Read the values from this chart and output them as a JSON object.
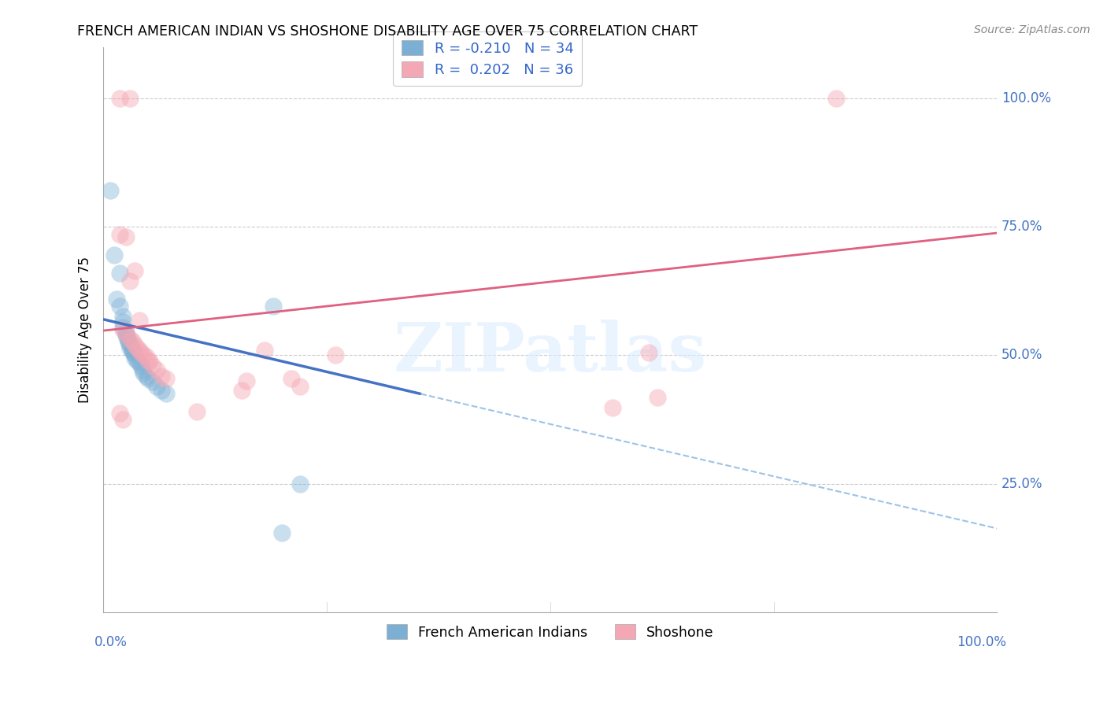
{
  "title": "FRENCH AMERICAN INDIAN VS SHOSHONE DISABILITY AGE OVER 75 CORRELATION CHART",
  "source": "Source: ZipAtlas.com",
  "ylabel": "Disability Age Over 75",
  "xlim": [
    0.0,
    1.0
  ],
  "ylim": [
    0.0,
    1.1
  ],
  "ytick_values": [
    0.25,
    0.5,
    0.75,
    1.0
  ],
  "ytick_labels": [
    "25.0%",
    "50.0%",
    "75.0%",
    "100.0%"
  ],
  "xtick_values": [
    0.0,
    0.25,
    0.5,
    0.75,
    1.0
  ],
  "xtick_labels": [
    "0.0%",
    "",
    "",
    "",
    "100.0%"
  ],
  "color_blue": "#7BAFD4",
  "color_pink": "#F4A7B4",
  "color_blue_line": "#4472C4",
  "color_blue_dashed": "#9DC3E6",
  "color_pink_line": "#E06080",
  "watermark_text": "ZIPatlas",
  "legend_label1": "French American Indians",
  "legend_label2": "Shoshone",
  "legend_r1": "R = -0.210",
  "legend_n1": "N = 34",
  "legend_r2": "R =  0.202",
  "legend_n2": "N = 36",
  "blue_points": [
    [
      0.008,
      0.82
    ],
    [
      0.012,
      0.695
    ],
    [
      0.018,
      0.66
    ],
    [
      0.015,
      0.61
    ],
    [
      0.018,
      0.595
    ],
    [
      0.022,
      0.575
    ],
    [
      0.022,
      0.565
    ],
    [
      0.022,
      0.555
    ],
    [
      0.025,
      0.545
    ],
    [
      0.025,
      0.54
    ],
    [
      0.026,
      0.535
    ],
    [
      0.028,
      0.53
    ],
    [
      0.028,
      0.525
    ],
    [
      0.03,
      0.52
    ],
    [
      0.03,
      0.515
    ],
    [
      0.032,
      0.512
    ],
    [
      0.032,
      0.508
    ],
    [
      0.033,
      0.505
    ],
    [
      0.035,
      0.5
    ],
    [
      0.035,
      0.495
    ],
    [
      0.038,
      0.49
    ],
    [
      0.04,
      0.485
    ],
    [
      0.042,
      0.48
    ],
    [
      0.044,
      0.472
    ],
    [
      0.045,
      0.465
    ],
    [
      0.048,
      0.46
    ],
    [
      0.05,
      0.455
    ],
    [
      0.055,
      0.448
    ],
    [
      0.06,
      0.44
    ],
    [
      0.065,
      0.432
    ],
    [
      0.07,
      0.425
    ],
    [
      0.19,
      0.595
    ],
    [
      0.2,
      0.155
    ],
    [
      0.22,
      0.25
    ]
  ],
  "pink_points": [
    [
      0.018,
      1.0
    ],
    [
      0.03,
      1.0
    ],
    [
      0.82,
      1.0
    ],
    [
      0.018,
      0.735
    ],
    [
      0.025,
      0.73
    ],
    [
      0.035,
      0.665
    ],
    [
      0.03,
      0.645
    ],
    [
      0.04,
      0.568
    ],
    [
      0.022,
      0.55
    ],
    [
      0.025,
      0.542
    ],
    [
      0.03,
      0.532
    ],
    [
      0.032,
      0.528
    ],
    [
      0.035,
      0.52
    ],
    [
      0.038,
      0.515
    ],
    [
      0.04,
      0.51
    ],
    [
      0.042,
      0.505
    ],
    [
      0.045,
      0.5
    ],
    [
      0.048,
      0.498
    ],
    [
      0.05,
      0.49
    ],
    [
      0.052,
      0.488
    ],
    [
      0.055,
      0.48
    ],
    [
      0.06,
      0.472
    ],
    [
      0.065,
      0.46
    ],
    [
      0.07,
      0.455
    ],
    [
      0.18,
      0.51
    ],
    [
      0.21,
      0.455
    ],
    [
      0.22,
      0.44
    ],
    [
      0.26,
      0.5
    ],
    [
      0.61,
      0.505
    ],
    [
      0.62,
      0.418
    ],
    [
      0.57,
      0.398
    ],
    [
      0.16,
      0.45
    ],
    [
      0.155,
      0.432
    ],
    [
      0.105,
      0.39
    ],
    [
      0.018,
      0.388
    ],
    [
      0.022,
      0.375
    ]
  ],
  "blue_solid_line": {
    "x0": 0.0,
    "y0": 0.57,
    "x1": 0.355,
    "y1": 0.425
  },
  "blue_dashed_line": {
    "x0": 0.355,
    "y0": 0.425,
    "x1": 1.02,
    "y1": 0.155
  },
  "pink_line": {
    "x0": 0.0,
    "y0": 0.548,
    "x1": 1.0,
    "y1": 0.738
  }
}
